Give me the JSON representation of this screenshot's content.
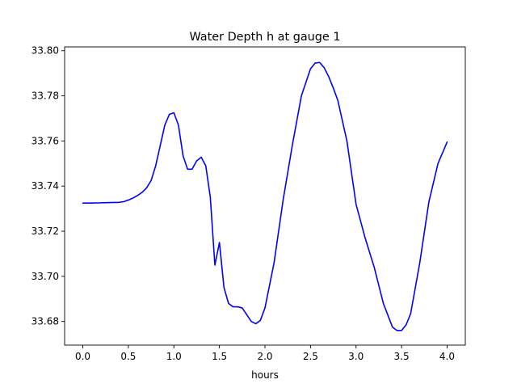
{
  "chart_data": {
    "type": "line",
    "title": "Water Depth h at gauge 1",
    "xlabel": "hours",
    "ylabel": "",
    "xlim": [
      -0.2,
      4.2
    ],
    "ylim": [
      33.6695,
      33.8017
    ],
    "grid": false,
    "xticks": [
      0.0,
      0.5,
      1.0,
      1.5,
      2.0,
      2.5,
      3.0,
      3.5,
      4.0
    ],
    "xtick_labels": [
      "0.0",
      "0.5",
      "1.0",
      "1.5",
      "2.0",
      "2.5",
      "3.0",
      "3.5",
      "4.0"
    ],
    "yticks": [
      33.68,
      33.7,
      33.72,
      33.74,
      33.76,
      33.78,
      33.8
    ],
    "ytick_labels": [
      "33.68",
      "33.70",
      "33.72",
      "33.74",
      "33.76",
      "33.78",
      "33.80"
    ],
    "series": [
      {
        "color": "#0000ff",
        "x": [
          0.0,
          0.1,
          0.2,
          0.3,
          0.4,
          0.45,
          0.5,
          0.55,
          0.6,
          0.65,
          0.7,
          0.75,
          0.8,
          0.85,
          0.9,
          0.95,
          1.0,
          1.05,
          1.1,
          1.15,
          1.2,
          1.25,
          1.3,
          1.35,
          1.4,
          1.45,
          1.5,
          1.55,
          1.6,
          1.65,
          1.7,
          1.75,
          1.8,
          1.85,
          1.9,
          1.95,
          2.0,
          2.1,
          2.2,
          2.3,
          2.4,
          2.5,
          2.55,
          2.6,
          2.65,
          2.7,
          2.75,
          2.8,
          2.9,
          3.0,
          3.1,
          3.2,
          3.3,
          3.4,
          3.45,
          3.5,
          3.55,
          3.6,
          3.7,
          3.8,
          3.9,
          4.0
        ],
        "y": [
          33.7325,
          33.7325,
          33.7326,
          33.7327,
          33.7328,
          33.7331,
          33.7338,
          33.7347,
          33.7358,
          33.7372,
          33.7392,
          33.7425,
          33.749,
          33.758,
          33.767,
          33.7718,
          33.7725,
          33.767,
          33.7535,
          33.7475,
          33.7475,
          33.7512,
          33.7528,
          33.749,
          33.735,
          33.705,
          33.715,
          33.695,
          33.688,
          33.6865,
          33.6865,
          33.686,
          33.683,
          33.68,
          33.679,
          33.6805,
          33.686,
          33.706,
          33.734,
          33.758,
          33.78,
          33.792,
          33.7945,
          33.7948,
          33.7925,
          33.7885,
          33.7835,
          33.778,
          33.76,
          33.732,
          33.717,
          33.704,
          33.688,
          33.6775,
          33.676,
          33.676,
          33.6785,
          33.6835,
          33.706,
          33.733,
          33.75,
          33.7595
        ]
      }
    ]
  }
}
